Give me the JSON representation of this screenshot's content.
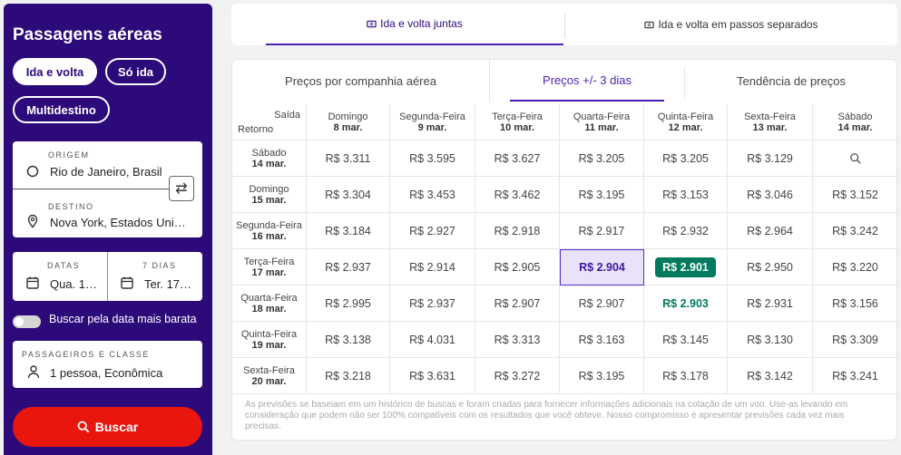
{
  "sidebar": {
    "title": "Passagens aéreas",
    "trip_types": [
      "Ida e volta",
      "Só ida",
      "Multidestino"
    ],
    "origin_label": "ORIGEM",
    "origin_value": "Rio de Janeiro, Brasil",
    "destination_label": "DESTINO",
    "destination_value": "Nova York, Estados Uni…",
    "dates_label": "DATAS",
    "dates_value": "Qua. 1…",
    "days_label": "7 DIAS",
    "days_value": "Ter. 17…",
    "cheapest_toggle": "Buscar pela data mais barata",
    "passengers_label": "PASSAGEIROS E CLASSE",
    "passengers_value": "1 pessoa, Econômica",
    "search_button": "Buscar"
  },
  "top_tabs": [
    "Ida e volta juntas",
    "Ida e volta em passos separados"
  ],
  "sub_tabs": [
    "Preços por companhia aérea",
    "Preços +/- 3 dias",
    "Tendência de preços"
  ],
  "grid": {
    "corner_top": "Saída",
    "corner_bottom": "Retorno",
    "columns": [
      {
        "day": "Domingo",
        "date": "8 mar."
      },
      {
        "day": "Segunda-Feira",
        "date": "9 mar."
      },
      {
        "day": "Terça-Feira",
        "date": "10 mar."
      },
      {
        "day": "Quarta-Feira",
        "date": "11 mar."
      },
      {
        "day": "Quinta-Feira",
        "date": "12 mar."
      },
      {
        "day": "Sexta-Feira",
        "date": "13 mar."
      },
      {
        "day": "Sábado",
        "date": "14 mar."
      }
    ],
    "rows": [
      {
        "day": "Sábado",
        "date": "14 mar.",
        "prices": [
          "R$ 3.311",
          "R$ 3.595",
          "R$ 3.627",
          "R$ 3.205",
          "R$ 3.205",
          "R$ 3.129",
          ""
        ]
      },
      {
        "day": "Domingo",
        "date": "15 mar.",
        "prices": [
          "R$ 3.304",
          "R$ 3.453",
          "R$ 3.462",
          "R$ 3.195",
          "R$ 3.153",
          "R$ 3.046",
          "R$ 3.152"
        ]
      },
      {
        "day": "Segunda-Feira",
        "date": "16 mar.",
        "prices": [
          "R$ 3.184",
          "R$ 2.927",
          "R$ 2.918",
          "R$ 2.917",
          "R$ 2.932",
          "R$ 2.964",
          "R$ 3.242"
        ]
      },
      {
        "day": "Terça-Feira",
        "date": "17 mar.",
        "prices": [
          "R$ 2.937",
          "R$ 2.914",
          "R$ 2.905",
          "R$ 2.904",
          "R$ 2.901",
          "R$ 2.950",
          "R$ 3.220"
        ]
      },
      {
        "day": "Quarta-Feira",
        "date": "18 mar.",
        "prices": [
          "R$ 2.995",
          "R$ 2.937",
          "R$ 2.907",
          "R$ 2.907",
          "R$ 2.903",
          "R$ 2.931",
          "R$ 3.156"
        ]
      },
      {
        "day": "Quinta-Feira",
        "date": "19 mar.",
        "prices": [
          "R$ 3.138",
          "R$ 4.031",
          "R$ 3.313",
          "R$ 3.163",
          "R$ 3.145",
          "R$ 3.130",
          "R$ 3.309"
        ]
      },
      {
        "day": "Sexta-Feira",
        "date": "20 mar.",
        "prices": [
          "R$ 3.218",
          "R$ 3.631",
          "R$ 3.272",
          "R$ 3.195",
          "R$ 3.178",
          "R$ 3.142",
          "R$ 3.241"
        ]
      }
    ],
    "selected": {
      "row": 3,
      "col": 3
    },
    "best": {
      "row": 3,
      "col": 4
    },
    "green": [
      {
        "row": 4,
        "col": 4
      }
    ]
  },
  "disclaimer": "As previsões se baseiam em um histórico de buscas e foram criadas para fornecer informações adicionais na cotação de um voo. Use-as levando em consideração que podem não ser 100% compatíveis com os resultados que você obteve. Nosso compromisso é apresentar previsões cada vez mais precisas.",
  "colors": {
    "brand": "#2d0a7a",
    "accent": "#4b1fb8",
    "search": "#e8160c",
    "best": "#007a5e"
  }
}
